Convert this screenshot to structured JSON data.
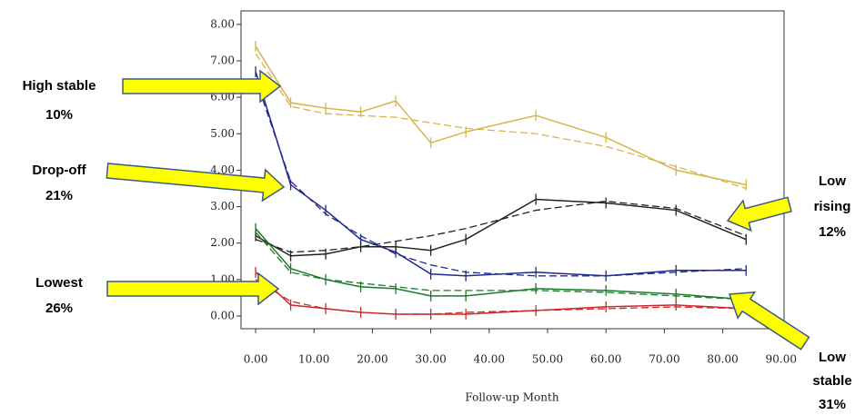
{
  "chart_data": {
    "type": "line",
    "xlabel": "Follow-up Month",
    "x": [
      0,
      6,
      12,
      18,
      24,
      30,
      36,
      48,
      60,
      72,
      84
    ],
    "xlim": [
      -2.5,
      90.5
    ],
    "xticks": [
      {
        "value": 0,
        "label": "0.00"
      },
      {
        "value": 10,
        "label": "10.00"
      },
      {
        "value": 20,
        "label": "20.00"
      },
      {
        "value": 30,
        "label": "30.00"
      },
      {
        "value": 40,
        "label": "40.00"
      },
      {
        "value": 50,
        "label": "50.00"
      },
      {
        "value": 60,
        "label": "60.00"
      },
      {
        "value": 70,
        "label": "70.00"
      },
      {
        "value": 80,
        "label": "80.00"
      },
      {
        "value": 90,
        "label": "90.00"
      }
    ],
    "ylim": [
      -0.35,
      8.37
    ],
    "yticks": [
      {
        "value": 0,
        "label": "0.00"
      },
      {
        "value": 1,
        "label": "1.00"
      },
      {
        "value": 2,
        "label": "2.00"
      },
      {
        "value": 3,
        "label": "3.00"
      },
      {
        "value": 4,
        "label": "4.00"
      },
      {
        "value": 5,
        "label": "5.00"
      },
      {
        "value": 6,
        "label": "6.00"
      },
      {
        "value": 7,
        "label": "7.00"
      },
      {
        "value": 8,
        "label": "8.00"
      }
    ],
    "series": [
      {
        "name": "High stable",
        "share": "10%",
        "color": "#d9b44a",
        "values": [
          7.4,
          5.85,
          5.7,
          5.6,
          5.9,
          4.75,
          5.05,
          5.5,
          4.9,
          4.0,
          3.6
        ],
        "fitted": [
          7.2,
          5.75,
          5.55,
          5.5,
          5.45,
          5.3,
          5.15,
          5.0,
          4.65,
          4.1,
          3.5
        ]
      },
      {
        "name": "Drop-off",
        "share": "21%",
        "color": "#1f2a8a",
        "values": [
          6.7,
          3.6,
          2.9,
          2.1,
          1.75,
          1.15,
          1.1,
          1.2,
          1.1,
          1.25,
          1.25
        ],
        "fitted": [
          6.5,
          3.7,
          2.8,
          2.2,
          1.7,
          1.4,
          1.2,
          1.1,
          1.1,
          1.2,
          1.3
        ]
      },
      {
        "name": "Lowest",
        "share": "26%",
        "color": "#cc2a2a",
        "values": [
          1.2,
          0.3,
          0.2,
          0.1,
          0.05,
          0.05,
          0.05,
          0.15,
          0.25,
          0.3,
          0.2
        ],
        "fitted": [
          1.0,
          0.4,
          0.2,
          0.1,
          0.05,
          0.05,
          0.1,
          0.15,
          0.2,
          0.25,
          0.2
        ]
      },
      {
        "name": "Low rising",
        "share": "12%",
        "color": "#222222",
        "values": [
          2.2,
          1.65,
          1.7,
          1.9,
          1.9,
          1.8,
          2.1,
          3.2,
          3.1,
          2.9,
          2.1
        ],
        "fitted": [
          2.1,
          1.75,
          1.8,
          1.9,
          2.05,
          2.2,
          2.4,
          2.9,
          3.15,
          2.95,
          2.2
        ]
      },
      {
        "name": "Low stable",
        "share": "31%",
        "color": "#1a7a2a",
        "values": [
          2.4,
          1.3,
          1.0,
          0.8,
          0.75,
          0.55,
          0.55,
          0.75,
          0.7,
          0.6,
          0.45
        ],
        "fitted": [
          2.3,
          1.2,
          1.0,
          0.9,
          0.8,
          0.7,
          0.7,
          0.7,
          0.65,
          0.55,
          0.45
        ]
      }
    ]
  }
}
